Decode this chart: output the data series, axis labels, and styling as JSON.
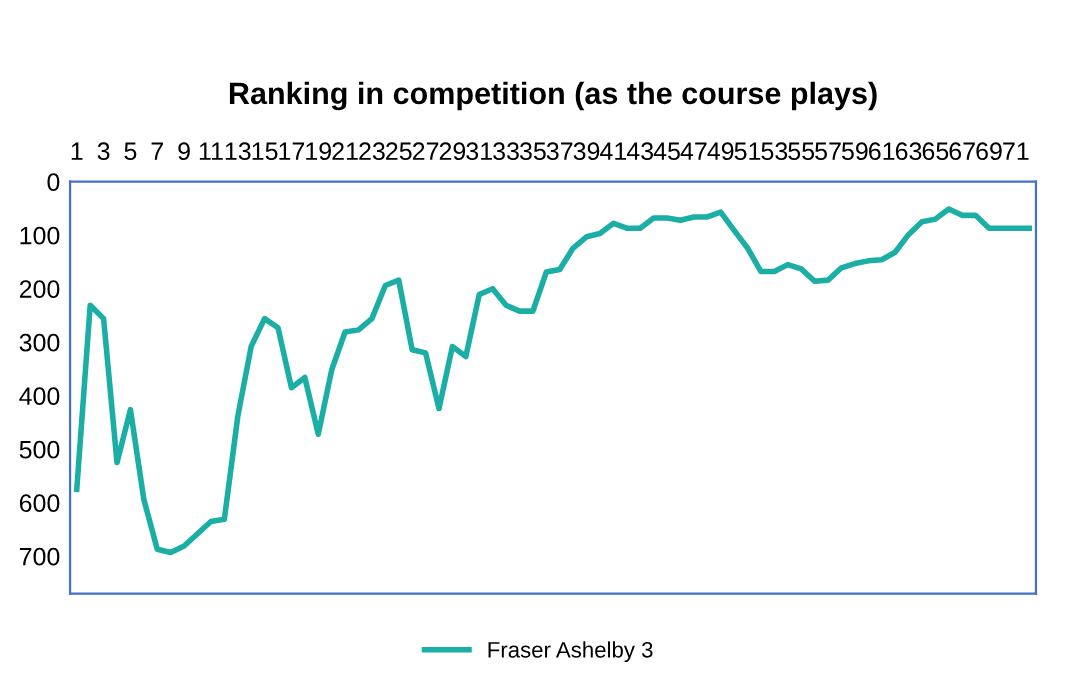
{
  "chart_data": {
    "type": "line",
    "title": "Ranking in competition (as the course plays)",
    "categories": [
      "1",
      null,
      "3",
      null,
      "5",
      null,
      "7",
      null,
      "9",
      null,
      "11",
      null,
      "13",
      null,
      "15",
      null,
      "17",
      null,
      "19",
      null,
      "21",
      null,
      "23",
      null,
      "25",
      null,
      "27",
      null,
      "29",
      null,
      "31",
      null,
      "33",
      null,
      "35",
      null,
      "37",
      null,
      "39",
      null,
      "41",
      null,
      "43",
      null,
      "45",
      null,
      "47",
      null,
      "49",
      null,
      "51",
      null,
      "53",
      null,
      "55",
      null,
      "57",
      null,
      "59",
      null,
      "61",
      null,
      "63",
      null,
      "65",
      null,
      "67",
      null,
      "69",
      null,
      "71",
      null
    ],
    "series": [
      {
        "name": "Fraser Ashelby 3",
        "color": "#1aaea4",
        "values": [
          575,
          231,
          256,
          525,
          426,
          594,
          687,
          693,
          681,
          658,
          635,
          631,
          439,
          308,
          256,
          273,
          385,
          366,
          472,
          352,
          281,
          277,
          256,
          194,
          184,
          314,
          320,
          424,
          308,
          327,
          211,
          200,
          231,
          242,
          242,
          169,
          164,
          124,
          103,
          97,
          78,
          87,
          87,
          68,
          68,
          72,
          66,
          66,
          57,
          91,
          124,
          168,
          168,
          155,
          163,
          186,
          184,
          161,
          153,
          148,
          146,
          132,
          99,
          75,
          70,
          51,
          63,
          63,
          87,
          87,
          87,
          87
        ]
      }
    ],
    "ylim": [
      770,
      0
    ],
    "yticks": [
      0,
      100,
      200,
      300,
      400,
      500,
      600,
      700
    ],
    "legend": "bottom",
    "marker": "none",
    "line_style": "solid",
    "grid": false
  }
}
